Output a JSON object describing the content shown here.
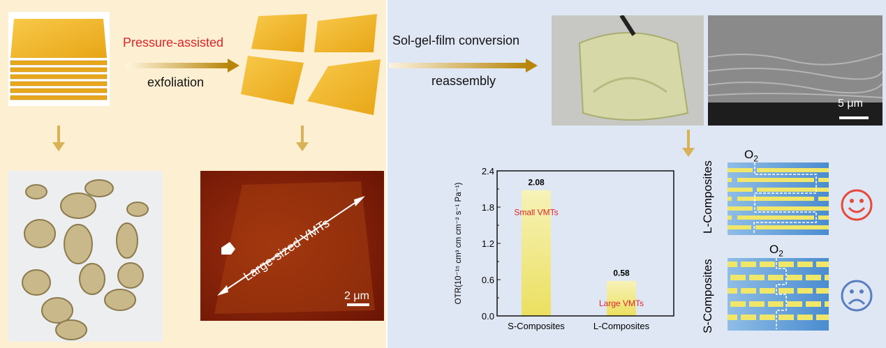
{
  "left": {
    "step1_label": "Pressure-assisted",
    "step2_label": "exfoliation",
    "afm_label": "Large-sized VMTs",
    "afm_scale": "2 μm"
  },
  "right": {
    "step1_label": "Sol-gel-film conversion",
    "step2_label": "reassembly",
    "sem_scale": "5 μm",
    "schematic_L_label": "L-Composites",
    "schematic_S_label": "S-Composites",
    "oxygen_label": "O",
    "oxygen_sub": "2"
  },
  "colors": {
    "accent_red": "#e0252a",
    "arrow_gold": "#c99a2e",
    "bar_yellow": "#efe36a",
    "schematic_blue": "#4f8fd0",
    "happy_face": "#e54a3a",
    "sad_face": "#5a7fc0"
  },
  "chart_data": {
    "type": "bar",
    "categories": [
      "S-Composites",
      "L-Composites"
    ],
    "values": [
      2.08,
      0.58
    ],
    "value_labels": [
      "2.08",
      "0.58"
    ],
    "bar_annotations": [
      "Small VMTs",
      "Large VMTs"
    ],
    "ylabel": "OTR(10⁻¹⁵ cm³ cm cm⁻² s⁻¹ Pa⁻¹)",
    "ylim": [
      0,
      2.4
    ],
    "yticks": [
      "0.0",
      "0.6",
      "1.2",
      "1.8",
      "2.4"
    ],
    "grid": false
  }
}
